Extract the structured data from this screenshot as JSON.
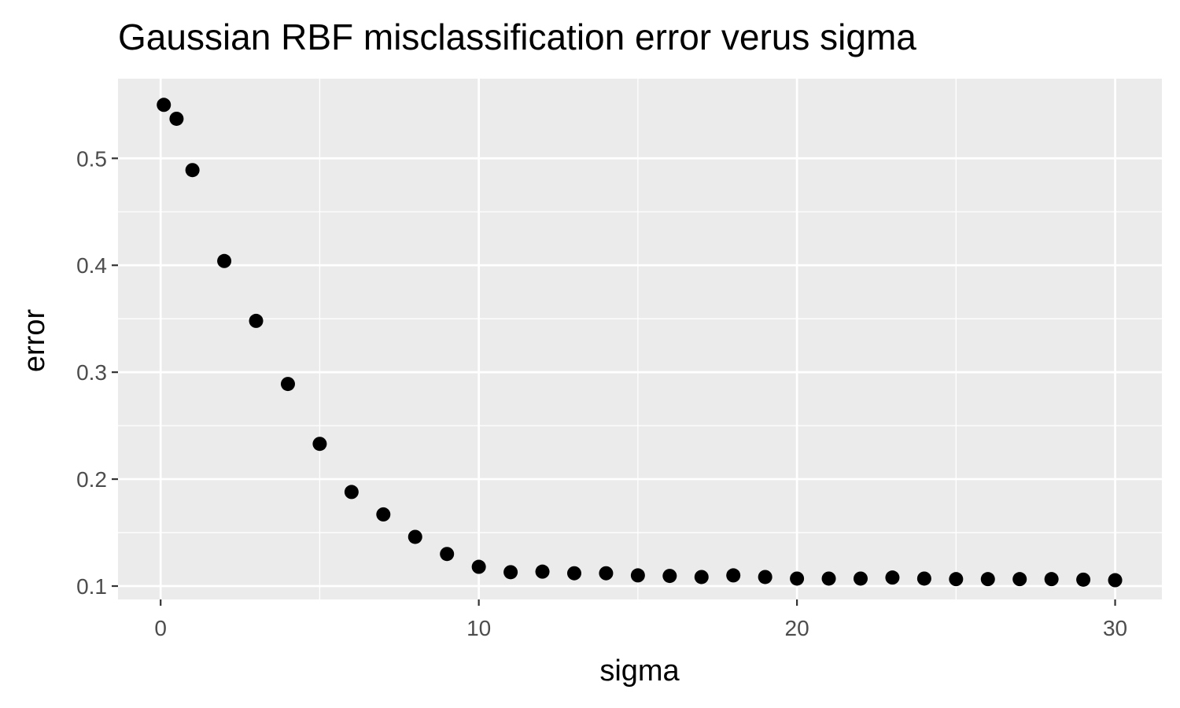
{
  "chart_data": {
    "type": "scatter",
    "title": "Gaussian RBF misclassification error verus sigma",
    "xlabel": "sigma",
    "ylabel": "error",
    "xlim": [
      -1.34,
      31.47
    ],
    "ylim": [
      0.0875,
      0.5745
    ],
    "xticks": [
      0,
      10,
      20,
      30
    ],
    "yticks": [
      0.1,
      0.2,
      0.3,
      0.4,
      0.5
    ],
    "xtick_labels": [
      "0",
      "10",
      "20",
      "30"
    ],
    "ytick_labels": [
      "0.1",
      "0.2",
      "0.3",
      "0.4",
      "0.5"
    ],
    "grid": true,
    "legend": "none",
    "colors": {
      "panel": "#ebebeb",
      "grid": "#ffffff",
      "point": "#000000",
      "tick_text": "#4d4d4d"
    },
    "points": [
      {
        "x": 0.1,
        "y": 0.55
      },
      {
        "x": 0.5,
        "y": 0.537
      },
      {
        "x": 1,
        "y": 0.489
      },
      {
        "x": 2,
        "y": 0.404
      },
      {
        "x": 3,
        "y": 0.348
      },
      {
        "x": 4,
        "y": 0.289
      },
      {
        "x": 5,
        "y": 0.233
      },
      {
        "x": 6,
        "y": 0.188
      },
      {
        "x": 7,
        "y": 0.167
      },
      {
        "x": 8,
        "y": 0.146
      },
      {
        "x": 9,
        "y": 0.13
      },
      {
        "x": 10,
        "y": 0.118
      },
      {
        "x": 11,
        "y": 0.113
      },
      {
        "x": 12,
        "y": 0.1135
      },
      {
        "x": 13,
        "y": 0.112
      },
      {
        "x": 14,
        "y": 0.112
      },
      {
        "x": 15,
        "y": 0.11
      },
      {
        "x": 16,
        "y": 0.1095
      },
      {
        "x": 17,
        "y": 0.1085
      },
      {
        "x": 18,
        "y": 0.11
      },
      {
        "x": 19,
        "y": 0.1085
      },
      {
        "x": 20,
        "y": 0.107
      },
      {
        "x": 21,
        "y": 0.107
      },
      {
        "x": 22,
        "y": 0.107
      },
      {
        "x": 23,
        "y": 0.108
      },
      {
        "x": 24,
        "y": 0.107
      },
      {
        "x": 25,
        "y": 0.1065
      },
      {
        "x": 26,
        "y": 0.1065
      },
      {
        "x": 27,
        "y": 0.1065
      },
      {
        "x": 28,
        "y": 0.1065
      },
      {
        "x": 29,
        "y": 0.106
      },
      {
        "x": 30,
        "y": 0.1055
      }
    ]
  }
}
